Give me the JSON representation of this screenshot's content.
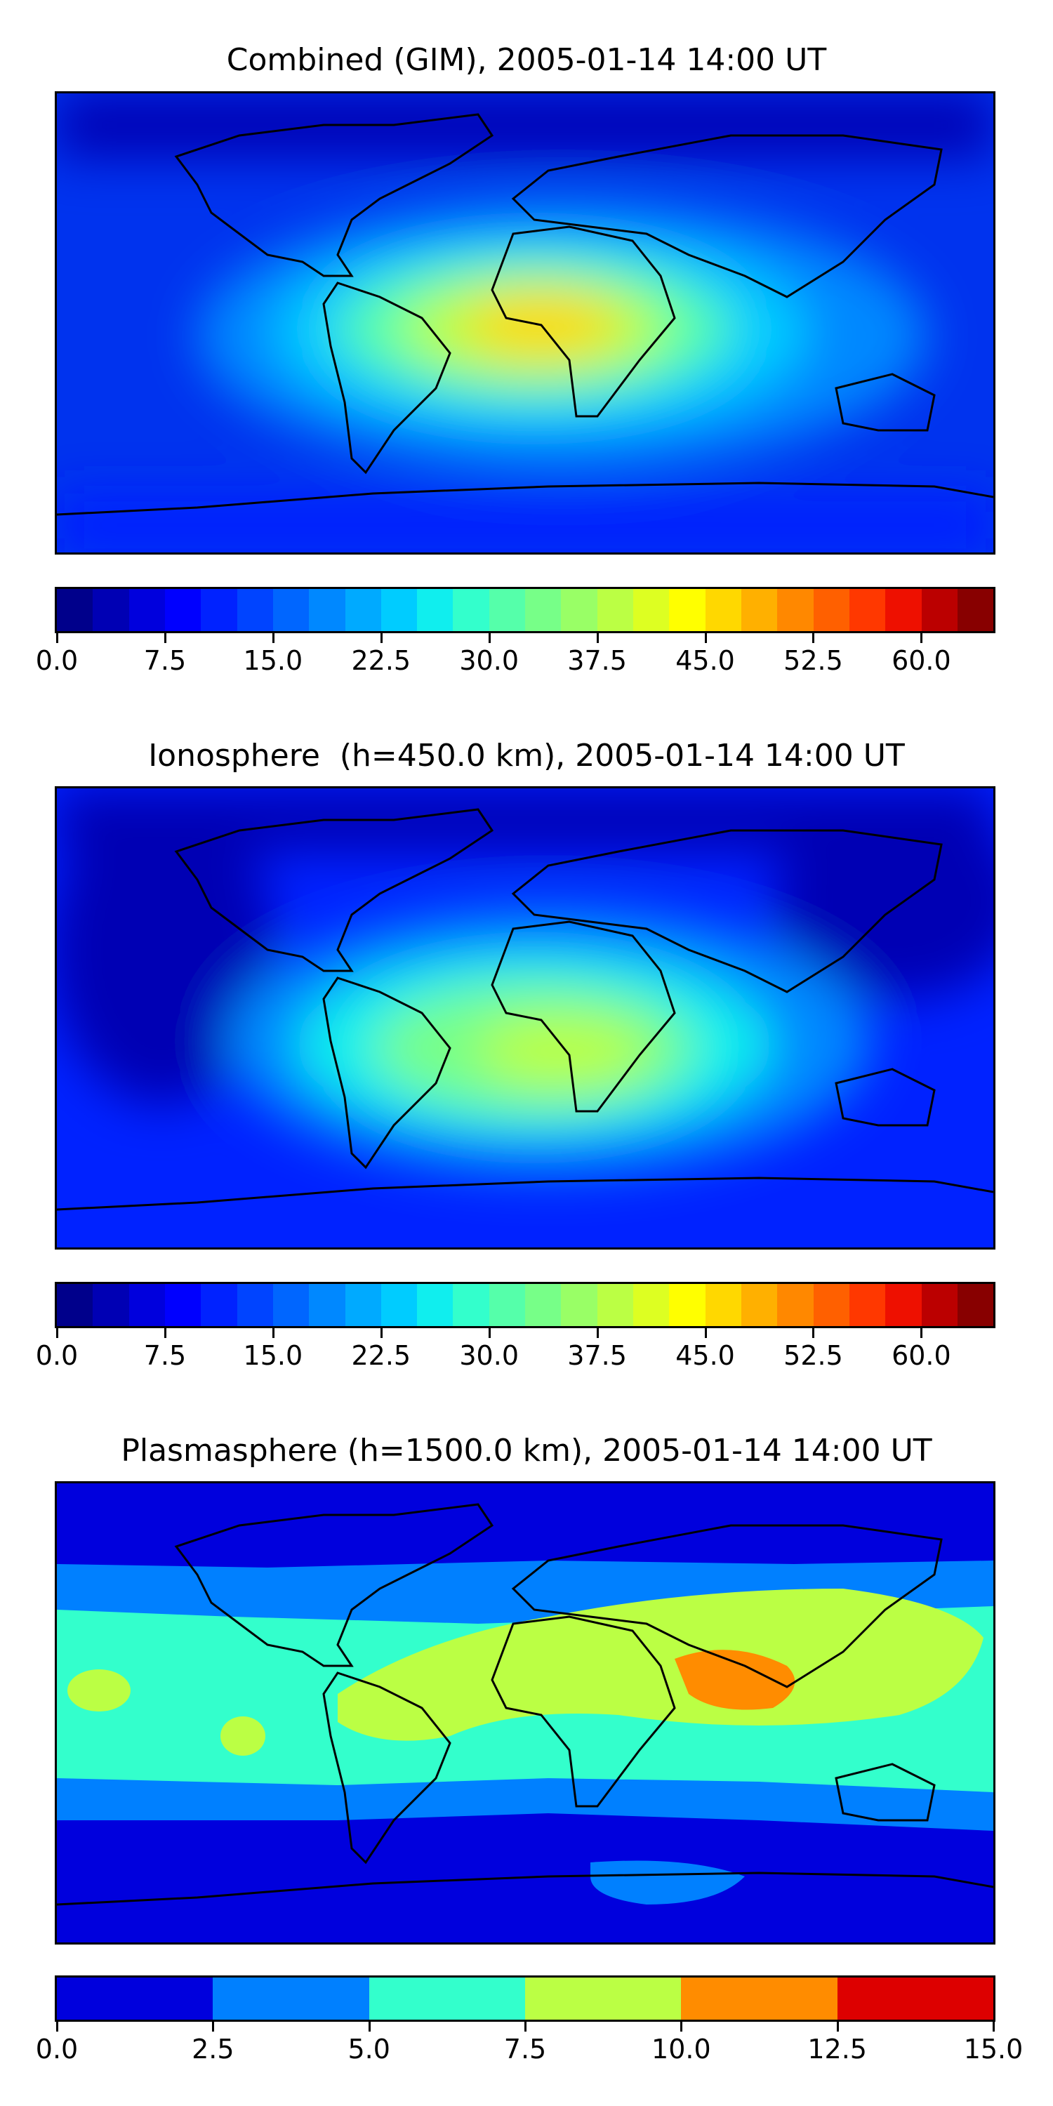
{
  "panels": [
    {
      "title": "Combined (GIM), 2005-01-14 14:00 UT",
      "colorbar": {
        "colors": [
          "#00008b",
          "#0000b4",
          "#0000dd",
          "#0000ff",
          "#0022ff",
          "#0044ff",
          "#0066ff",
          "#0088ff",
          "#00aaff",
          "#00ccff",
          "#10eeee",
          "#33ffcc",
          "#55ffaa",
          "#77ff88",
          "#99ff66",
          "#bbff44",
          "#ddff22",
          "#ffff00",
          "#ffd800",
          "#ffb000",
          "#ff8800",
          "#ff6000",
          "#ff3800",
          "#ee1000",
          "#bb0000",
          "#880000"
        ],
        "vmin": 0,
        "vmax": 65,
        "ticks": [
          "0.0",
          "7.5",
          "15.0",
          "22.5",
          "30.0",
          "37.5",
          "45.0",
          "52.5",
          "60.0"
        ],
        "tick_values": [
          0,
          7.5,
          15,
          22.5,
          30,
          37.5,
          45,
          52.5,
          60
        ]
      }
    },
    {
      "title": "Ionosphere  (h=450.0 km), 2005-01-14 14:00 UT",
      "colorbar": {
        "colors": [
          "#00008b",
          "#0000b4",
          "#0000dd",
          "#0000ff",
          "#0022ff",
          "#0044ff",
          "#0066ff",
          "#0088ff",
          "#00aaff",
          "#00ccff",
          "#10eeee",
          "#33ffcc",
          "#55ffaa",
          "#77ff88",
          "#99ff66",
          "#bbff44",
          "#ddff22",
          "#ffff00",
          "#ffd800",
          "#ffb000",
          "#ff8800",
          "#ff6000",
          "#ff3800",
          "#ee1000",
          "#bb0000",
          "#880000"
        ],
        "vmin": 0,
        "vmax": 65,
        "ticks": [
          "0.0",
          "7.5",
          "15.0",
          "22.5",
          "30.0",
          "37.5",
          "45.0",
          "52.5",
          "60.0"
        ],
        "tick_values": [
          0,
          7.5,
          15,
          22.5,
          30,
          37.5,
          45,
          52.5,
          60
        ]
      }
    },
    {
      "title": "Plasmasphere (h=1500.0 km), 2005-01-14 14:00 UT",
      "colorbar": {
        "colors": [
          "#0000dd",
          "#0080ff",
          "#33ffcc",
          "#bbff44",
          "#ff8c00",
          "#dd0000"
        ],
        "vmin": 0,
        "vmax": 15,
        "ticks": [
          "0.0",
          "2.5",
          "5.0",
          "7.5",
          "10.0",
          "12.5",
          "15.0"
        ],
        "tick_values": [
          0,
          2.5,
          5,
          7.5,
          10,
          12.5,
          15
        ]
      }
    }
  ]
}
